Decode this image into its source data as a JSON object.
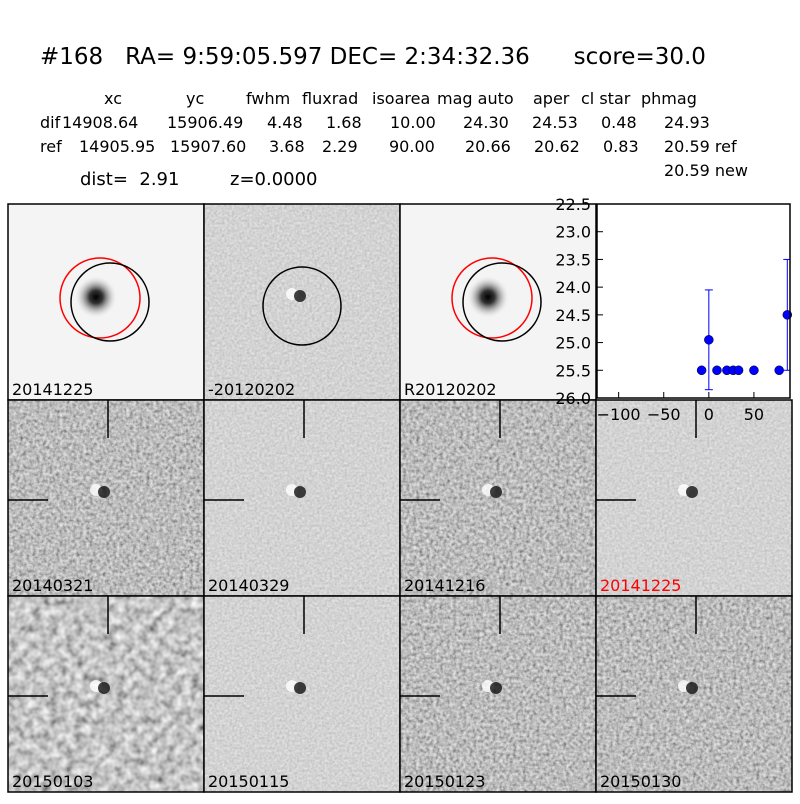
{
  "header": {
    "title": "#168   RA= 9:59:05.597 DEC= 2:34:32.36      score=30.0"
  },
  "table": {
    "columns": [
      "xc",
      "yc",
      "fwhm",
      "fluxrad",
      "isoarea",
      "mag auto",
      "aper",
      "cl star",
      "phmag"
    ],
    "rows": [
      [
        "dif",
        "14908.64",
        "15906.49",
        "4.48",
        "1.68",
        "10.00",
        "24.30",
        "24.53",
        "0.48",
        "24.93"
      ],
      [
        "ref",
        "14905.95",
        "15907.60",
        "3.68",
        "2.29",
        "90.00",
        "20.66",
        "20.62",
        "0.83",
        "20.59 ref"
      ]
    ],
    "extra": "20.59 new"
  },
  "info": {
    "dist": "dist=  2.91",
    "z": "z=0.0000"
  },
  "panels": [
    {
      "label": "20141225"
    },
    {
      "label": "-20120202"
    },
    {
      "label": "R20120202"
    },
    null,
    {
      "label": "20140321"
    },
    {
      "label": "20140329"
    },
    {
      "label": "20141216"
    },
    {
      "label": "20141225",
      "color": "#ff0000"
    },
    {
      "label": "20150103"
    },
    {
      "label": "20150115"
    },
    {
      "label": "20150123"
    },
    {
      "label": "20150130"
    }
  ],
  "chart_data": {
    "type": "scatter",
    "xlim": [
      -124,
      90
    ],
    "ylim": [
      26,
      22.5
    ],
    "xticks": [
      {
        "value": -100,
        "label": "−100"
      },
      {
        "value": -50,
        "label": "−50"
      },
      0,
      50
    ],
    "yticks": [
      22.5,
      {
        "value": 23,
        "label": "23.0"
      },
      23.5,
      {
        "value": 24,
        "label": "24.0"
      },
      24.5,
      {
        "value": 25,
        "label": "25.0"
      },
      25.5,
      {
        "value": 26,
        "label": "26.0"
      }
    ],
    "series": [
      {
        "color": "#0000ff",
        "x": [
          -8,
          0,
          9,
          20,
          27,
          33,
          50,
          78,
          87
        ],
        "values": [
          25.5,
          24.95,
          25.5,
          25.5,
          25.5,
          25.5,
          25.5,
          25.5,
          24.5
        ],
        "errors": [
          null,
          0.9,
          null,
          null,
          null,
          null,
          null,
          null,
          1.0
        ]
      }
    ]
  }
}
